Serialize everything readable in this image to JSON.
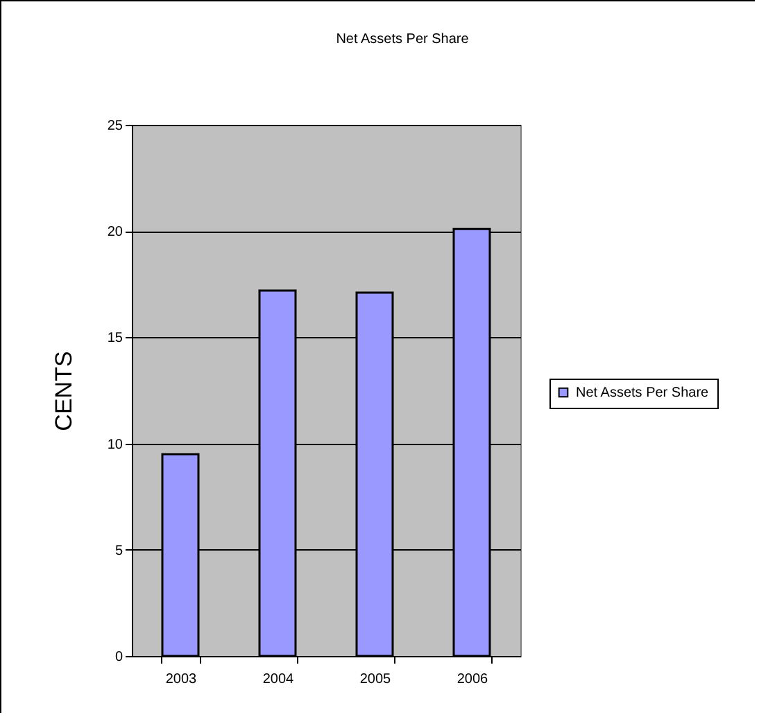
{
  "chart_data": {
    "type": "bar",
    "title": "Net Assets Per Share",
    "ylabel": "CENTS",
    "categories": [
      "2003",
      "2004",
      "2005",
      "2006"
    ],
    "series": [
      {
        "name": "Net Assets Per Share",
        "color": "#9999ff",
        "values": [
          9.5,
          17.2,
          17.1,
          20.1
        ]
      }
    ],
    "ylim": [
      0,
      25
    ],
    "yticks": [
      0,
      5,
      10,
      15,
      20,
      25
    ],
    "grid": "y",
    "legend": "right"
  }
}
